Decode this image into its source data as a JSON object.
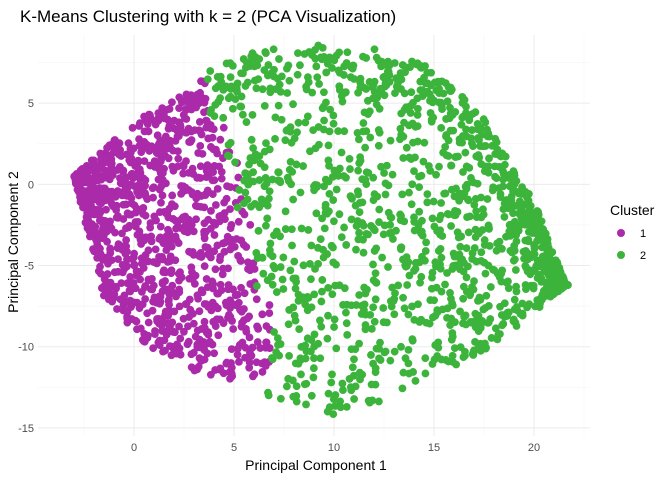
{
  "chart_data": {
    "type": "scatter",
    "title": "K-Means Clustering with k = 2 (PCA Visualization)",
    "xlabel": "Principal Component 1",
    "ylabel": "Principal Component 2",
    "xlim": [
      -4.8,
      22.8
    ],
    "ylim": [
      -15.5,
      9.2
    ],
    "x_ticks": [
      0,
      5,
      10,
      15,
      20
    ],
    "y_ticks": [
      -15,
      -10,
      -5,
      0,
      5
    ],
    "grid": true,
    "legend": {
      "title": "Cluster",
      "position": "right"
    },
    "series": [
      {
        "name": "1",
        "color": "#AA2AAA",
        "region": {
          "left_tip": [
            -3.0,
            0.5
          ],
          "upper_edge": [
            [
              -3.0,
              0.5
            ],
            [
              -1.2,
              2.5
            ],
            [
              0.5,
              4.2
            ],
            [
              2.5,
              5.8
            ],
            [
              3.7,
              6.6
            ]
          ],
          "cluster_boundary": [
            [
              3.7,
              6.6
            ],
            [
              4.0,
              4.0
            ],
            [
              5.2,
              0.0
            ],
            [
              5.8,
              -4.0
            ],
            [
              6.8,
              -8.0
            ],
            [
              6.8,
              -11.5
            ]
          ],
          "lower_edge": [
            [
              6.8,
              -11.5
            ],
            [
              5.5,
              -12.2
            ],
            [
              3.0,
              -11.5
            ],
            [
              0.5,
              -10.0
            ],
            [
              -1.5,
              -7.0
            ],
            [
              -3.0,
              -2.0
            ],
            [
              -3.0,
              0.5
            ]
          ]
        },
        "approx_count": 1300
      },
      {
        "name": "2",
        "color": "#3CB43C",
        "region": {
          "upper_edge": [
            [
              3.7,
              7.0
            ],
            [
              6.0,
              8.2
            ],
            [
              9.0,
              8.6
            ],
            [
              12.0,
              8.4
            ],
            [
              15.0,
              7.2
            ],
            [
              17.5,
              4.0
            ],
            [
              20.0,
              -1.0
            ],
            [
              21.6,
              -6.2
            ]
          ],
          "right_edge": [
            [
              21.6,
              -6.2
            ],
            [
              19.0,
              -9.0
            ],
            [
              16.0,
              -11.5
            ],
            [
              13.0,
              -13.2
            ],
            [
              10.0,
              -14.2
            ],
            [
              8.0,
              -13.5
            ]
          ],
          "cluster_boundary": [
            [
              3.7,
              7.0
            ],
            [
              4.0,
              4.0
            ],
            [
              5.2,
              0.0
            ],
            [
              5.8,
              -4.0
            ],
            [
              6.8,
              -8.0
            ],
            [
              7.5,
              -13.0
            ]
          ]
        },
        "approx_count": 2400
      }
    ]
  }
}
